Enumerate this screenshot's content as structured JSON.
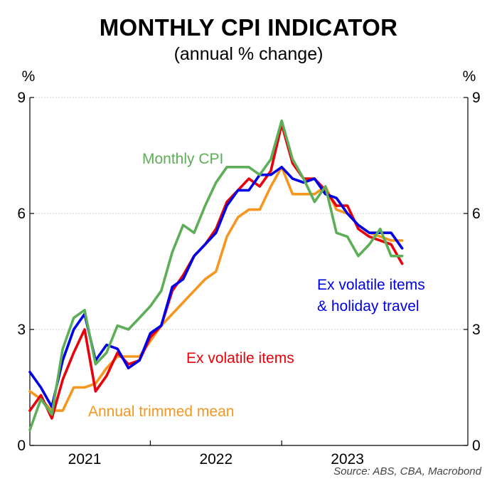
{
  "chart_data": {
    "type": "line",
    "title": "MONTHLY CPI INDICATOR",
    "subtitle": "(annual % change)",
    "ylabel_left": "%",
    "ylabel_right": "%",
    "ylim": [
      0,
      9
    ],
    "yticks": [
      0,
      3,
      6,
      9
    ],
    "xlim": [
      2020.583,
      2023.917
    ],
    "xtick_labels": [
      {
        "label": "2021",
        "x": 2021.0
      },
      {
        "label": "2022",
        "x": 2022.0
      },
      {
        "label": "2023",
        "x": 2023.0
      }
    ],
    "year_boundaries": [
      2021.5,
      2022.5
    ],
    "source": "Source: ABS, CBA, Macrobond",
    "series": [
      {
        "name": "Annual trimmed mean",
        "label_lines": [
          "Annual trimmed mean"
        ],
        "color": "#F5961E",
        "x": [
          2020.583,
          2020.667,
          2020.75,
          2020.833,
          2020.917,
          2021.0,
          2021.083,
          2021.167,
          2021.25,
          2021.333,
          2021.417,
          2021.5,
          2021.583,
          2021.667,
          2021.75,
          2021.833,
          2021.917,
          2022.0,
          2022.083,
          2022.167,
          2022.25,
          2022.333,
          2022.417,
          2022.5,
          2022.583,
          2022.667,
          2022.75,
          2022.833,
          2022.917,
          2023.0,
          2023.083,
          2023.167,
          2023.25,
          2023.333,
          2023.417
        ],
        "values": [
          1.4,
          1.2,
          0.9,
          0.9,
          1.5,
          1.5,
          1.6,
          2.0,
          2.3,
          2.3,
          2.3,
          2.7,
          3.1,
          3.4,
          3.7,
          4.0,
          4.3,
          4.5,
          5.4,
          5.9,
          6.1,
          6.1,
          6.7,
          7.2,
          6.5,
          6.5,
          6.5,
          6.7,
          6.1,
          6.0,
          5.7,
          5.5,
          5.4,
          5.3,
          5.3
        ]
      },
      {
        "name": "Ex volatile items",
        "label_lines": [
          "Ex volatile items"
        ],
        "color": "#E8000B",
        "x": [
          2020.583,
          2020.667,
          2020.75,
          2020.833,
          2020.917,
          2021.0,
          2021.083,
          2021.167,
          2021.25,
          2021.333,
          2021.417,
          2021.5,
          2021.583,
          2021.667,
          2021.75,
          2021.833,
          2021.917,
          2022.0,
          2022.083,
          2022.167,
          2022.25,
          2022.333,
          2022.417,
          2022.5,
          2022.583,
          2022.667,
          2022.75,
          2022.833,
          2022.917,
          2023.0,
          2023.083,
          2023.167,
          2023.25,
          2023.333,
          2023.417
        ],
        "values": [
          0.9,
          1.3,
          0.7,
          1.7,
          2.4,
          3.0,
          1.4,
          1.8,
          2.4,
          2.1,
          2.2,
          2.8,
          3.1,
          4.0,
          4.4,
          4.9,
          5.2,
          5.6,
          6.3,
          6.6,
          6.9,
          6.7,
          7.1,
          8.3,
          7.3,
          6.9,
          6.9,
          6.6,
          6.2,
          6.2,
          5.6,
          5.4,
          5.3,
          5.2,
          4.7
        ]
      },
      {
        "name": "Ex volatile items & holiday travel",
        "label_lines": [
          "Ex volatile items",
          "& holiday travel"
        ],
        "color": "#0000E6",
        "x": [
          2020.583,
          2020.667,
          2020.75,
          2020.833,
          2020.917,
          2021.0,
          2021.083,
          2021.167,
          2021.25,
          2021.333,
          2021.417,
          2021.5,
          2021.583,
          2021.667,
          2021.75,
          2021.833,
          2021.917,
          2022.0,
          2022.083,
          2022.167,
          2022.25,
          2022.333,
          2022.417,
          2022.5,
          2022.583,
          2022.667,
          2022.75,
          2022.833,
          2022.917,
          2023.0,
          2023.083,
          2023.167,
          2023.25,
          2023.333,
          2023.417
        ],
        "values": [
          1.9,
          1.5,
          1.0,
          2.2,
          3.0,
          3.4,
          2.2,
          2.6,
          2.5,
          2.0,
          2.2,
          2.9,
          3.1,
          4.1,
          4.3,
          4.9,
          5.2,
          5.5,
          6.2,
          6.6,
          6.6,
          7.0,
          7.0,
          7.2,
          6.9,
          6.8,
          6.9,
          6.5,
          6.4,
          6.0,
          5.7,
          5.5,
          5.5,
          5.5,
          5.1
        ]
      },
      {
        "name": "Monthly CPI",
        "label_lines": [
          "Monthly CPI"
        ],
        "color": "#5DAE58",
        "x": [
          2020.583,
          2020.667,
          2020.75,
          2020.833,
          2020.917,
          2021.0,
          2021.083,
          2021.167,
          2021.25,
          2021.333,
          2021.417,
          2021.5,
          2021.583,
          2021.667,
          2021.75,
          2021.833,
          2021.917,
          2022.0,
          2022.083,
          2022.167,
          2022.25,
          2022.333,
          2022.417,
          2022.5,
          2022.583,
          2022.667,
          2022.75,
          2022.833,
          2022.917,
          2023.0,
          2023.083,
          2023.167,
          2023.25,
          2023.333,
          2023.417
        ],
        "values": [
          0.4,
          1.2,
          0.8,
          2.5,
          3.3,
          3.5,
          2.1,
          2.4,
          3.1,
          3.0,
          3.3,
          3.6,
          4.0,
          5.0,
          5.7,
          5.5,
          6.2,
          6.8,
          7.2,
          7.2,
          7.2,
          7.0,
          7.4,
          8.4,
          7.4,
          6.9,
          6.3,
          6.7,
          5.5,
          5.4,
          4.9,
          5.2,
          5.6,
          4.9,
          4.9
        ]
      }
    ]
  }
}
